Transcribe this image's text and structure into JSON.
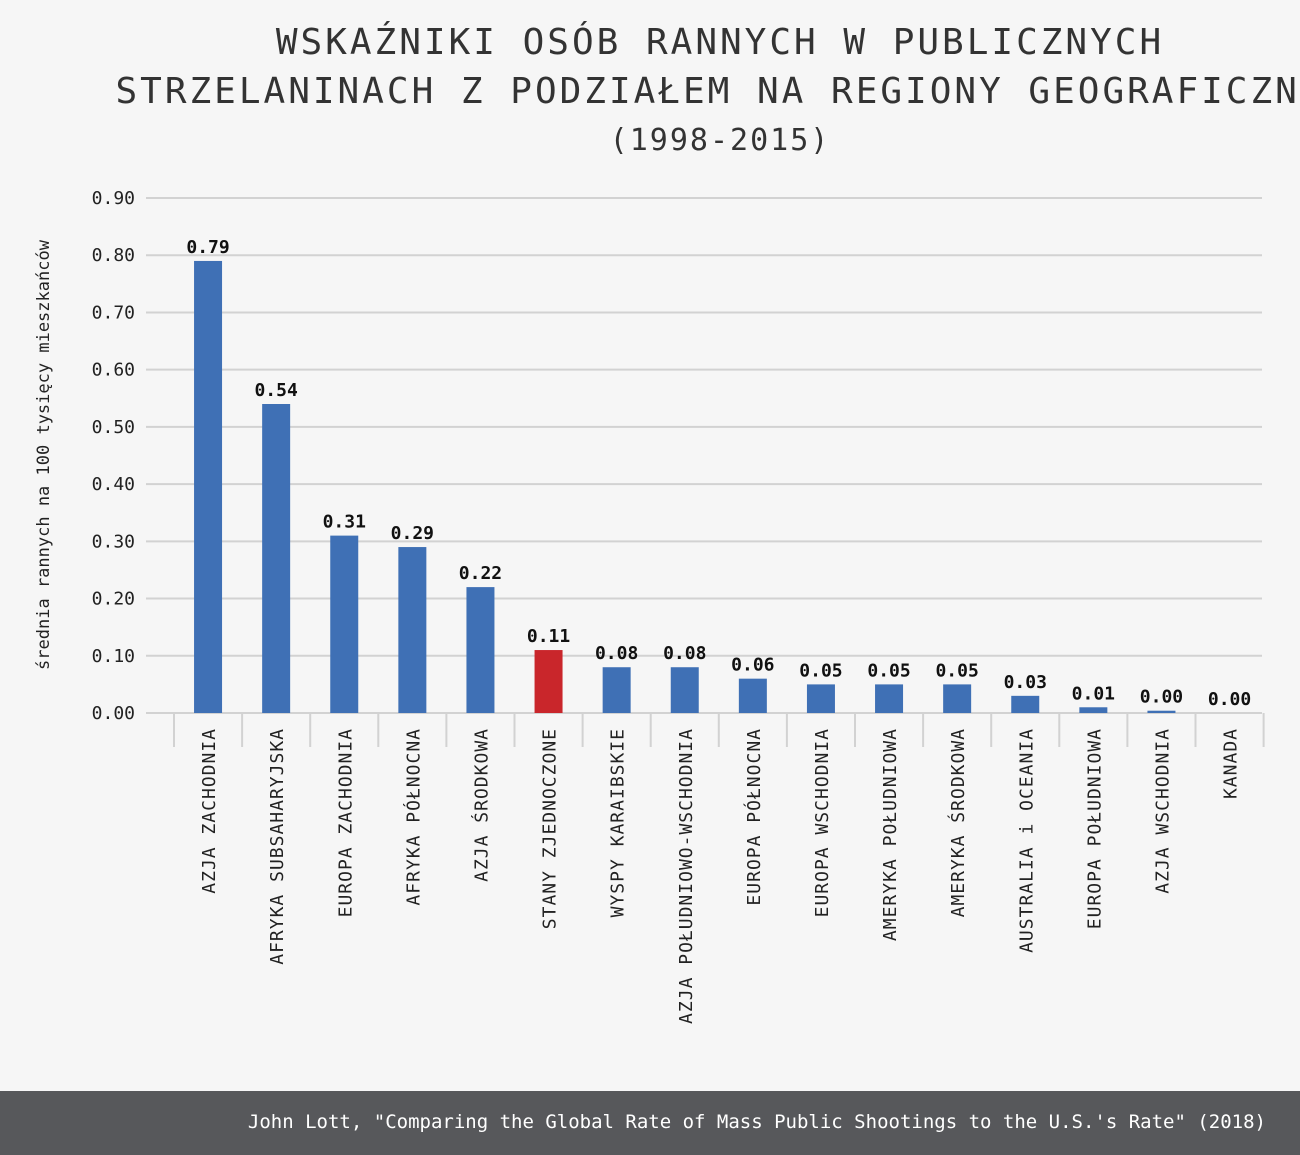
{
  "chart_data": {
    "type": "bar",
    "title": [
      "WSKAŹNIKI OSÓB RANNYCH W PUBLICZNYCH",
      "STRZELANINACH Z PODZIAŁEM NA REGIONY GEOGRAFICZNE"
    ],
    "subtitle": "(1998-2015)",
    "ylabel": "średnia rannych na 100 tysięcy mieszkańców",
    "xlabel": "",
    "ylim": [
      0,
      0.9
    ],
    "yticks": [
      "0.00",
      "0.10",
      "0.20",
      "0.30",
      "0.40",
      "0.50",
      "0.60",
      "0.70",
      "0.80",
      "0.90"
    ],
    "grid": true,
    "categories": [
      "AZJA ZACHODNIA",
      "AFRYKA SUBSAHARYJSKA",
      "EUROPA ZACHODNIA",
      "AFRYKA PÓŁNOCNA",
      "AZJA ŚRODKOWA",
      "STANY ZJEDNOCZONE",
      "WYSPY KARAIBSKIE",
      "AZJA POŁUDNIOWO-WSCHODNIA",
      "EUROPA PÓŁNOCNA",
      "EUROPA WSCHODNIA",
      "AMERYKA POŁUDNIOWA",
      "AMERYKA ŚRODKOWA",
      "AUSTRALIA i OCEANIA",
      "EUROPA POŁUDNIOWA",
      "AZJA WSCHODNIA",
      "KANADA"
    ],
    "values": [
      0.79,
      0.54,
      0.31,
      0.29,
      0.22,
      0.11,
      0.08,
      0.08,
      0.06,
      0.05,
      0.05,
      0.05,
      0.03,
      0.01,
      0.004,
      0.0
    ],
    "value_labels": [
      "0.79",
      "0.54",
      "0.31",
      "0.29",
      "0.22",
      "0.11",
      "0.08",
      "0.08",
      "0.06",
      "0.05",
      "0.05",
      "0.05",
      "0.03",
      "0.01",
      "0.00",
      "0.00"
    ],
    "colors": {
      "default": "#3f70b5",
      "highlight": "#c9262b"
    },
    "highlight_category": "STANY ZJEDNOCZONE"
  },
  "footer": {
    "source": "John Lott, \"Comparing the Global Rate of Mass Public Shootings to the U.S.'s Rate\" (2018)"
  }
}
